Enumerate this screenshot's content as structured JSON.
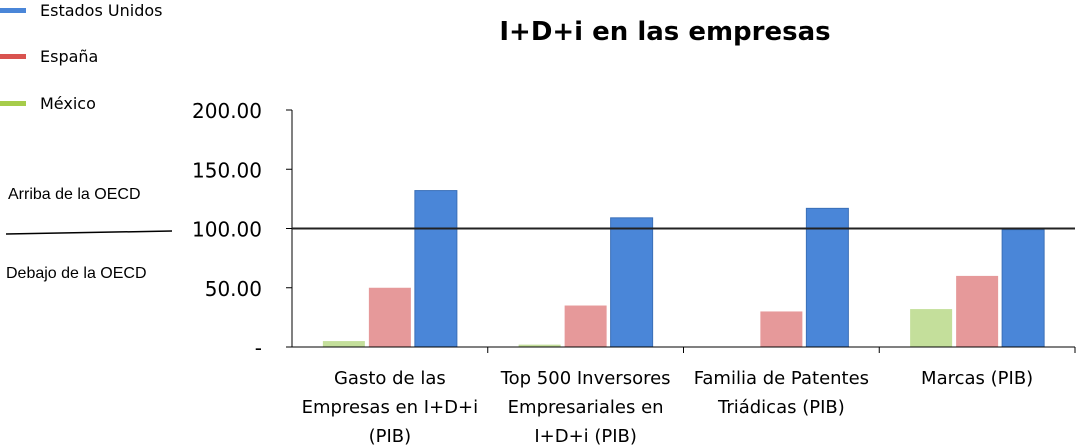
{
  "chart_data": {
    "type": "bar",
    "title": "I+D+i en las empresas",
    "categories": [
      [
        "Gasto de las",
        "Empresas en I+D+i",
        "(PIB)"
      ],
      [
        "Top 500 Inversores",
        "Empresariales en",
        "I+D+i (PIB)"
      ],
      [
        "Familia de Patentes",
        "Triádicas (PIB)"
      ],
      [
        "Marcas (PIB)"
      ]
    ],
    "series": [
      {
        "name": "México",
        "color": "#c4df9b",
        "values": [
          5,
          2,
          0,
          32
        ]
      },
      {
        "name": "España",
        "color": "#e6999a",
        "values": [
          50,
          35,
          30,
          60
        ]
      },
      {
        "name": "Estados Unidos",
        "color": "#4a86d8",
        "values": [
          132,
          109,
          117,
          99
        ]
      }
    ],
    "ylim": [
      0,
      200
    ],
    "yticks": [
      0,
      50,
      100,
      150,
      200
    ],
    "ytick_labels": [
      "-",
      "50.00",
      "100.00",
      "150.00",
      "200.00"
    ],
    "reference_line": 100,
    "legend_position": "top-left",
    "grid": false
  },
  "legend": [
    {
      "label": "Estados Unidos",
      "color": "#4a86d8"
    },
    {
      "label": "España",
      "color": "#d9534f"
    },
    {
      "label": "México",
      "color": "#a6cc4a"
    }
  ],
  "notes": {
    "above": "Arriba de la OECD",
    "below": "Debajo  de la OECD"
  }
}
